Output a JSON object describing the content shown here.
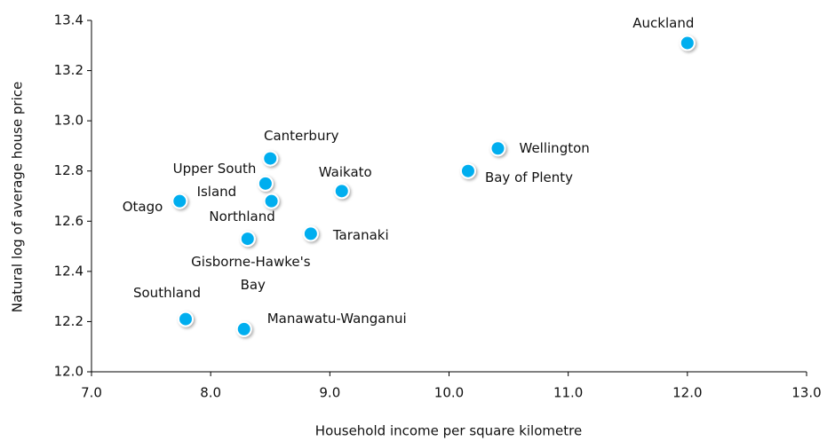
{
  "chart_data": {
    "type": "scatter",
    "x_label": "Household income per square kilometre",
    "y_label": "Natural log of average house price",
    "xlim": [
      7,
      13
    ],
    "xticks": [
      {
        "value": 7,
        "label": "7.0"
      },
      {
        "value": 8,
        "label": "8.0"
      },
      {
        "value": 9,
        "label": "9.0"
      },
      {
        "value": 10,
        "label": "10.0"
      },
      {
        "value": 11,
        "label": "11.0"
      },
      {
        "value": 12,
        "label": "12.0"
      },
      {
        "value": 13,
        "label": "13.0"
      }
    ],
    "ylim": [
      12,
      13.4
    ],
    "yticks": [
      {
        "value": 12,
        "label": "12.0"
      },
      12.2,
      12.4,
      12.6,
      12.8,
      {
        "value": 13,
        "label": "13.0"
      },
      13.2,
      13.4
    ],
    "color": "#00aeef",
    "series": [
      {
        "labels": [
          "Auckland",
          "Wellington",
          "Bay of Plenty",
          "Waikato",
          "Taranaki",
          "Canterbury",
          "Upper South Island",
          "Northland",
          "Otago",
          "Gisborne-Hawke's Bay",
          "Southland",
          "Manawatu-Wanganui"
        ],
        "x": [
          12.0,
          10.41,
          10.16,
          9.1,
          8.84,
          8.5,
          8.46,
          8.51,
          7.74,
          8.31,
          7.79,
          8.28
        ],
        "values": [
          13.31,
          12.89,
          12.8,
          12.72,
          12.55,
          12.85,
          12.75,
          12.68,
          12.68,
          12.53,
          12.21,
          12.17
        ]
      }
    ]
  }
}
